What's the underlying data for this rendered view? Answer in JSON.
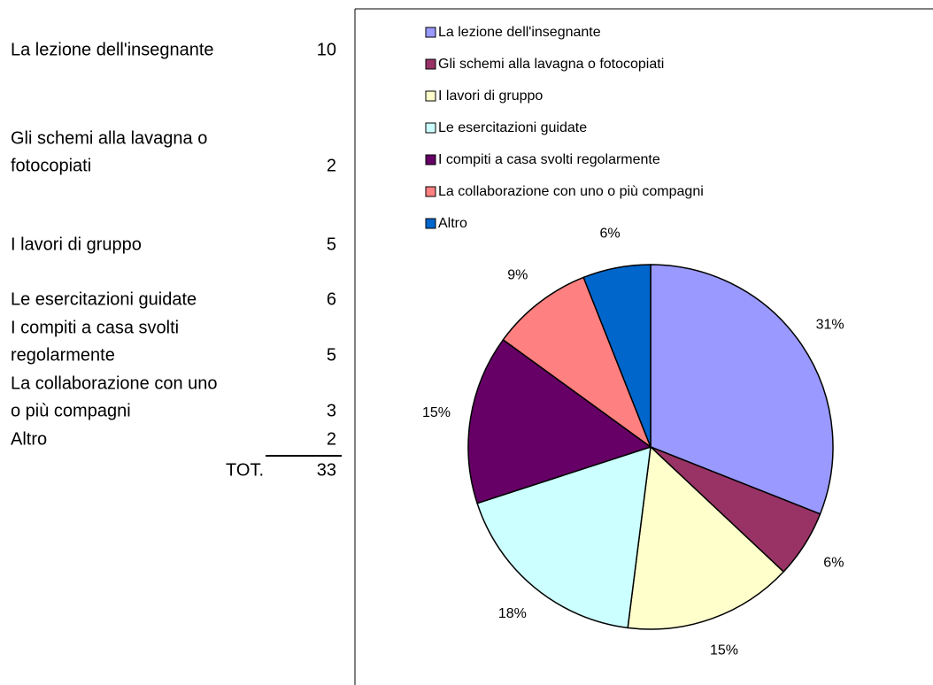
{
  "table": {
    "rows": [
      {
        "label": [
          "La lezione dell'insegnante"
        ],
        "value": "10"
      },
      {
        "label": [
          "Gli schemi alla lavagna o",
          "fotocopiati"
        ],
        "value": "2"
      },
      {
        "label": [
          "I lavori di gruppo"
        ],
        "value": "5"
      },
      {
        "label": [
          "Le esercitazioni guidate"
        ],
        "value": "6"
      },
      {
        "label": [
          "I compiti a casa svolti",
          "regolarmente"
        ],
        "value": "5"
      },
      {
        "label": [
          "La collaborazione con uno",
          "o più compagni"
        ],
        "value": "3"
      },
      {
        "label": [
          "Altro"
        ],
        "value": "2"
      }
    ],
    "total_label": "TOT.",
    "total": "33"
  },
  "chart_data": {
    "type": "pie",
    "categories": [
      "La lezione dell'insegnante",
      "Gli schemi alla lavagna o fotocopiati",
      "I lavori di gruppo",
      "Le esercitazioni guidate",
      "I compiti a casa svolti regolarmente",
      "La collaborazione con uno o più compagni",
      "Altro"
    ],
    "values": [
      31,
      6,
      15,
      18,
      15,
      9,
      6
    ],
    "value_labels": [
      "31%",
      "6%",
      "15%",
      "18%",
      "15%",
      "9%",
      "6%"
    ],
    "colors": [
      "#9999ff",
      "#993366",
      "#ffffcc",
      "#ccffff",
      "#660066",
      "#ff8080",
      "#0066cc"
    ],
    "legend": "top"
  }
}
